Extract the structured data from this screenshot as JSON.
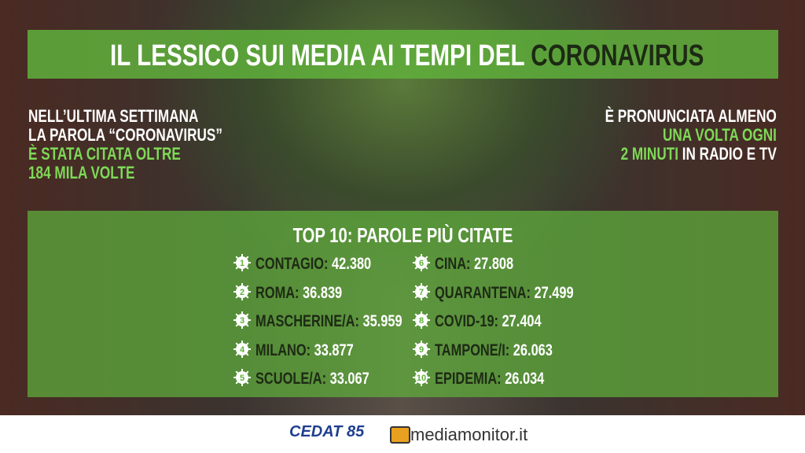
{
  "title": {
    "text": "IL LESSICO SUI MEDIA AI TEMPI DEL",
    "highlight": "CORONAVIRUS"
  },
  "left_note": {
    "lines": [
      "NELL’ULTIMA SETTIMANA",
      "LA PAROLA “CORONAVIRUS”"
    ],
    "highlight_lines": [
      "È STATA CITATA OLTRE",
      "184 MILA VOLTE"
    ]
  },
  "right_note": {
    "line1": "È PRONUNCIATA ALMENO",
    "line2": "UNA VOLTA OGNI",
    "line3_highlight": "2 MINUTI",
    "line3_rest": "IN  RADIO E TV"
  },
  "top10": {
    "title": "TOP 10: PAROLE PIÙ CITATE",
    "items": [
      {
        "rank": 1,
        "word": "CONTAGIO",
        "count": "42.380"
      },
      {
        "rank": 2,
        "word": "ROMA",
        "count": "36.839"
      },
      {
        "rank": 3,
        "word": "MASCHERINE/A",
        "count": "35.959"
      },
      {
        "rank": 4,
        "word": "MILANO",
        "count": "33.877"
      },
      {
        "rank": 5,
        "word": "SCUOLE/A",
        "count": "33.067"
      },
      {
        "rank": 6,
        "word": "CINA",
        "count": "27.808"
      },
      {
        "rank": 7,
        "word": "QUARANTENA",
        "count": "27.499"
      },
      {
        "rank": 8,
        "word": "COVID-19",
        "count": "27.404"
      },
      {
        "rank": 9,
        "word": "TAMPONE/I",
        "count": "26.063"
      },
      {
        "rank": 10,
        "word": "EPIDEMIA",
        "count": "26.034"
      }
    ]
  },
  "footer": {
    "logo_left": "CEDAT 85",
    "logo_right": "mediamonitor.it"
  }
}
